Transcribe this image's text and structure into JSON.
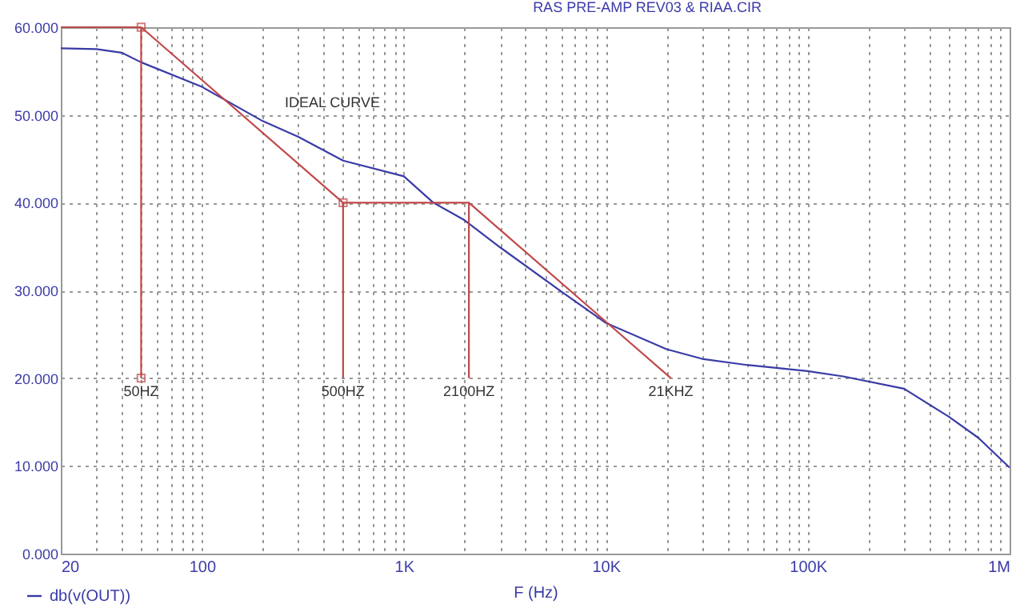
{
  "chart_data": {
    "type": "line",
    "title": "RAS PRE-AMP REV03 & RIAA.CIR",
    "xlabel": "F (Hz)",
    "log": "x",
    "grid": true,
    "legend": "bottom left",
    "line_style": "solid",
    "marker": "none",
    "series": [
      {
        "name": "db(v(OUT))",
        "color": "#3a3aa8",
        "x": [
          20,
          30,
          40,
          50,
          100,
          200,
          300,
          500,
          1000,
          1400,
          2000,
          3000,
          6000,
          10000,
          20000,
          30000,
          50000,
          100000,
          150000,
          300000,
          500000,
          700000,
          1000000
        ],
        "values": [
          57.6,
          57.5,
          57.1,
          56.0,
          53.2,
          49.3,
          47.5,
          44.8,
          43.0,
          40.0,
          38.0,
          34.9,
          29.9,
          26.3,
          23.3,
          22.2,
          21.5,
          20.8,
          20.2,
          18.8,
          15.6,
          13.2,
          9.8
        ]
      },
      {
        "color": "#c04848",
        "x": [
          20,
          50,
          500,
          2100,
          21000
        ],
        "values": [
          60,
          60,
          40,
          40,
          20
        ]
      },
      {
        "color": "#c04848",
        "x": [
          50,
          50
        ],
        "values": [
          60,
          20
        ]
      },
      {
        "color": "#c04848",
        "x": [
          500,
          500
        ],
        "values": [
          40,
          20
        ]
      },
      {
        "color": "#c04848",
        "x": [
          2100,
          2100
        ],
        "values": [
          40,
          20
        ]
      },
      {
        "type": "scatter",
        "marker": "square",
        "color": "#c04848",
        "x": [
          50,
          50,
          500
        ],
        "values": [
          60,
          20,
          40
        ]
      }
    ],
    "annotations": [
      "IDEAL CURVE",
      {
        "text": "50HZ",
        "x": 50,
        "y": 20
      },
      {
        "text": "500HZ",
        "x": 500,
        "y": 20
      },
      {
        "text": "2100HZ",
        "x": 2100,
        "y": 20
      },
      {
        "text": "21KHZ",
        "x": 21000,
        "y": 20
      }
    ],
    "xlim": [
      20,
      1000000
    ],
    "xticks": [
      {
        "value": 20,
        "label": "20"
      },
      {
        "value": 30,
        "label": null
      },
      {
        "value": 40,
        "label": null
      },
      {
        "value": 50,
        "label": null
      },
      {
        "value": 60,
        "label": null
      },
      {
        "value": 70,
        "label": null
      },
      {
        "value": 80,
        "label": null
      },
      {
        "value": 90,
        "label": null
      },
      {
        "value": 100,
        "label": "100"
      },
      {
        "value": 200,
        "label": null
      },
      {
        "value": 300,
        "label": null
      },
      {
        "value": 400,
        "label": null
      },
      {
        "value": 500,
        "label": null
      },
      {
        "value": 600,
        "label": null
      },
      {
        "value": 700,
        "label": null
      },
      {
        "value": 800,
        "label": null
      },
      {
        "value": 900,
        "label": null
      },
      {
        "value": 1000,
        "label": "1K"
      },
      {
        "value": 2000,
        "label": null
      },
      {
        "value": 3000,
        "label": null
      },
      {
        "value": 4000,
        "label": null
      },
      {
        "value": 5000,
        "label": null
      },
      {
        "value": 6000,
        "label": null
      },
      {
        "value": 7000,
        "label": null
      },
      {
        "value": 8000,
        "label": null
      },
      {
        "value": 9000,
        "label": null
      },
      {
        "value": 10000,
        "label": "10K"
      },
      {
        "value": 20000,
        "label": null
      },
      {
        "value": 30000,
        "label": null
      },
      {
        "value": 40000,
        "label": null
      },
      {
        "value": 50000,
        "label": null
      },
      {
        "value": 60000,
        "label": null
      },
      {
        "value": 70000,
        "label": null
      },
      {
        "value": 80000,
        "label": null
      },
      {
        "value": 90000,
        "label": null
      },
      {
        "value": 100000,
        "label": "100K"
      },
      {
        "value": 200000,
        "label": null
      },
      {
        "value": 300000,
        "label": null
      },
      {
        "value": 400000,
        "label": null
      },
      {
        "value": 500000,
        "label": null
      },
      {
        "value": 600000,
        "label": null
      },
      {
        "value": 700000,
        "label": null
      },
      {
        "value": 800000,
        "label": null
      },
      {
        "value": 900000,
        "label": null
      },
      {
        "value": 1000000,
        "label": "1M"
      }
    ],
    "ylim": [
      0,
      60
    ],
    "yticks": [
      {
        "value": 0,
        "label": "0.000"
      },
      {
        "value": 10,
        "label": "10.000"
      },
      {
        "value": 20,
        "label": "20.000"
      },
      {
        "value": 30,
        "label": "30.000"
      },
      {
        "value": 40,
        "label": "40.000"
      },
      {
        "value": 50,
        "label": "50.000"
      },
      {
        "value": 60,
        "label": "60.000"
      }
    ]
  }
}
